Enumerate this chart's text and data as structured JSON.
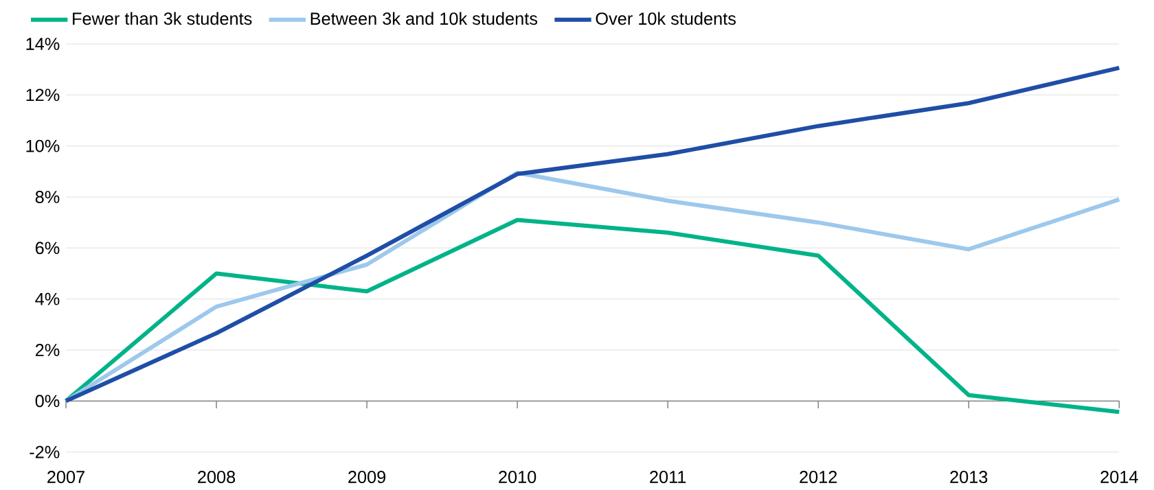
{
  "chart_data": {
    "type": "line",
    "x": [
      2007,
      2008,
      2009,
      2010,
      2011,
      2012,
      2013,
      2014
    ],
    "series": [
      {
        "name": "Fewer than 3k students",
        "color": "#00b388",
        "values": [
          0,
          5.0,
          4.3,
          7.1,
          6.6,
          5.7,
          0.23,
          -0.43
        ]
      },
      {
        "name": "Between 3k and 10k students",
        "color": "#9ec8ec",
        "values": [
          0,
          3.7,
          5.35,
          8.95,
          7.85,
          7.0,
          5.95,
          7.9
        ]
      },
      {
        "name": "Over 10k students",
        "color": "#1f4ea6",
        "values": [
          0,
          2.66,
          5.7,
          8.9,
          9.68,
          10.78,
          11.68,
          13.06
        ]
      }
    ],
    "xlim": [
      2007,
      2014
    ],
    "xticks": [
      2007,
      2008,
      2009,
      2010,
      2011,
      2012,
      2013,
      2014
    ],
    "ylim": [
      -2,
      14
    ],
    "yticks": [
      {
        "value": -2,
        "label": "-2%"
      },
      {
        "value": 0,
        "label": "0%"
      },
      {
        "value": 2,
        "label": "2%"
      },
      {
        "value": 4,
        "label": "4%"
      },
      {
        "value": 6,
        "label": "6%"
      },
      {
        "value": 8,
        "label": "8%"
      },
      {
        "value": 10,
        "label": "10%"
      },
      {
        "value": 12,
        "label": "12%"
      },
      {
        "value": 14,
        "label": "14%"
      }
    ],
    "grid": "y",
    "legend": "top left",
    "marker": "none",
    "line_style": "solid"
  }
}
